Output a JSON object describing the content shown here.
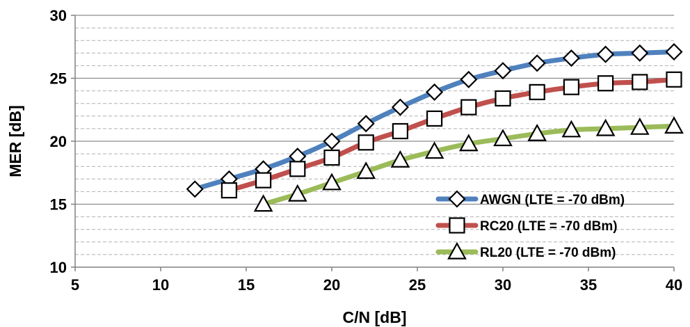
{
  "chart_data": {
    "type": "line",
    "title": "",
    "xlabel": "C/N [dB]",
    "ylabel": "MER [dB]",
    "xlim": [
      5,
      40
    ],
    "ylim": [
      10,
      30
    ],
    "xticks": [
      5,
      10,
      15,
      20,
      25,
      30,
      35,
      40
    ],
    "yticks": [
      10,
      15,
      20,
      25,
      30
    ],
    "grid": "horizontal dashed minor lines every 1 dB, solid major lines every 5 dB",
    "legend_position": "bottom-right",
    "series": [
      {
        "name": "AWGN (LTE = -70 dBm)",
        "color": "#4F81BD",
        "marker": "diamond",
        "x": [
          12,
          14,
          16,
          18,
          20,
          22,
          24,
          26,
          28,
          30,
          32,
          34,
          36,
          38,
          40
        ],
        "y": [
          16.2,
          17.0,
          17.8,
          18.8,
          20.0,
          21.4,
          22.7,
          23.9,
          24.9,
          25.6,
          26.2,
          26.6,
          26.9,
          27.0,
          27.1
        ]
      },
      {
        "name": "RC20 (LTE = -70 dBm)",
        "color": "#C0504D",
        "marker": "square",
        "x": [
          14,
          16,
          18,
          20,
          22,
          24,
          26,
          28,
          30,
          32,
          34,
          36,
          38,
          40
        ],
        "y": [
          16.1,
          16.9,
          17.8,
          18.7,
          19.9,
          20.8,
          21.8,
          22.7,
          23.4,
          23.9,
          24.3,
          24.6,
          24.7,
          24.9
        ]
      },
      {
        "name": "RL20 (LTE = -70 dBm)",
        "color": "#9BBB59",
        "marker": "triangle",
        "x": [
          16,
          18,
          20,
          22,
          24,
          26,
          28,
          30,
          32,
          34,
          36,
          38,
          40
        ],
        "y": [
          15.0,
          15.8,
          16.7,
          17.6,
          18.5,
          19.2,
          19.8,
          20.2,
          20.6,
          20.9,
          21.0,
          21.1,
          21.2
        ]
      }
    ]
  }
}
